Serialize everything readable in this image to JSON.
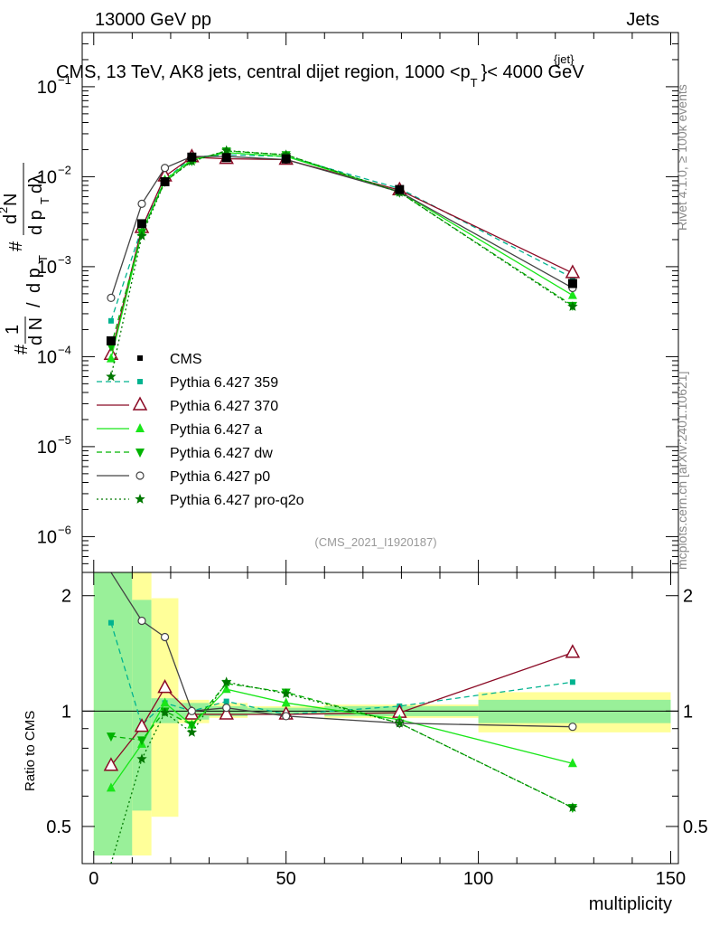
{
  "header": {
    "beam": "13000 GeV pp",
    "category": "Jets",
    "title": "CMS, 13 TeV, AK8 jets, central dijet region, 1000 <p",
    "title_sub": "T",
    "title_sup": "{jet}",
    "title_tail": "}< 4000 GeV",
    "side_rivet": "Rivet 4.1.0, ≥ 100k events",
    "side_site": "mcplots.cern.ch [arXiv:2401.10621]",
    "analysis_id": "(CMS_2021_I1920187)"
  },
  "axes": {
    "ylabel_main_parts": [
      "#",
      "1",
      "d N",
      "/",
      "d p",
      "T",
      "#",
      "d",
      "2",
      "N",
      "d p",
      "T",
      "dλ"
    ],
    "ylabel_ratio": "Ratio to CMS",
    "xlabel": "multiplicity",
    "x_ticks": [
      "0",
      "50",
      "100",
      "150"
    ],
    "y_main_ticks": [
      "10",
      "10",
      "10",
      "10",
      "10",
      "10"
    ],
    "y_main_exps": [
      "−6",
      "−5",
      "−4",
      "−3",
      "−2",
      "−1"
    ],
    "y_ratio_ticks": [
      "0.5",
      "1",
      "2"
    ]
  },
  "colors": {
    "cms": "#000000",
    "p359": "#00b38f",
    "p370": "#8b0a25",
    "pa": "#19e619",
    "pdw": "#00b300",
    "pp0": "#444444",
    "pq2o": "#007700",
    "band_inner": "#99f099",
    "band_outer": "#ffff99"
  },
  "chart_data": {
    "type": "line",
    "title": "CMS, 13 TeV, AK8 jets, central dijet region, 1000 < pT{jet} < 4000 GeV",
    "xlabel": "multiplicity",
    "ylabel": "1/dN/dpT dN2/dpT dlambda",
    "xlim": [
      -3,
      152
    ],
    "ylim_main": [
      4e-07,
      0.4
    ],
    "ylim_ratio": [
      0.4,
      2.3
    ],
    "bins": [
      [
        0,
        10
      ],
      [
        10,
        15
      ],
      [
        15,
        22
      ],
      [
        22,
        30
      ],
      [
        30,
        40
      ],
      [
        40,
        60
      ],
      [
        60,
        100
      ],
      [
        100,
        150
      ]
    ],
    "x": [
      4.5,
      12.5,
      18.5,
      25.5,
      34.5,
      50,
      79.5,
      124.5
    ],
    "reference": {
      "name": "CMS",
      "values": [
        0.00015,
        0.003,
        0.0088,
        0.0165,
        0.0163,
        0.0158,
        0.0072,
        0.00065
      ],
      "band_inner": [
        [
          0.42,
          2.35
        ],
        [
          0.55,
          1.95
        ],
        [
          0.93,
          1.08
        ],
        [
          0.95,
          1.05
        ],
        [
          0.97,
          1.03
        ],
        [
          0.98,
          1.02
        ],
        [
          0.97,
          1.03
        ],
        [
          0.93,
          1.07
        ]
      ],
      "band_outer": [
        [
          0.42,
          2.35
        ],
        [
          0.42,
          2.35
        ],
        [
          0.53,
          1.97
        ],
        [
          0.93,
          1.07
        ],
        [
          0.96,
          1.05
        ],
        [
          0.98,
          1.03
        ],
        [
          0.96,
          1.04
        ],
        [
          0.88,
          1.12
        ]
      ]
    },
    "series": [
      {
        "name": "Pythia 6.427 359",
        "style": "dashed",
        "marker": "square",
        "values": [
          0.00025,
          0.0027,
          0.0092,
          0.0165,
          0.0175,
          0.0168,
          0.0074,
          0.00075
        ],
        "ratio": [
          1.7,
          0.92,
          1.05,
          1.0,
          1.06,
          0.98,
          1.03,
          1.19
        ]
      },
      {
        "name": "Pythia 6.427 370",
        "style": "solid",
        "marker": "open-triangle",
        "values": [
          0.000105,
          0.0027,
          0.0101,
          0.0165,
          0.0158,
          0.0155,
          0.0071,
          0.00085
        ],
        "ratio": [
          0.72,
          0.91,
          1.15,
          0.98,
          0.98,
          0.98,
          0.99,
          1.42
        ]
      },
      {
        "name": "Pythia 6.427 a",
        "style": "solid",
        "marker": "triangle",
        "values": [
          9.5e-05,
          0.0024,
          0.0092,
          0.0155,
          0.0185,
          0.0168,
          0.0068,
          0.00048
        ],
        "ratio": [
          0.63,
          0.82,
          1.05,
          0.92,
          1.14,
          1.05,
          0.95,
          0.73
        ]
      },
      {
        "name": "Pythia 6.427 dw",
        "style": "dashed",
        "marker": "down-triangle",
        "values": [
          0.00013,
          0.0024,
          0.0088,
          0.015,
          0.0193,
          0.0175,
          0.0067,
          0.00037
        ],
        "ratio": [
          0.86,
          0.84,
          1.0,
          0.92,
          1.18,
          1.12,
          0.93,
          0.56
        ]
      },
      {
        "name": "Pythia 6.427 p0",
        "style": "solid",
        "marker": "open-circle",
        "values": [
          0.00045,
          0.005,
          0.0125,
          0.0168,
          0.0168,
          0.0155,
          0.0068,
          0.00058
        ],
        "ratio": [
          3.0,
          1.72,
          1.56,
          1.0,
          1.02,
          0.97,
          0.93,
          0.91
        ]
      },
      {
        "name": "Pythia 6.427 pro-q2o",
        "style": "dotted",
        "marker": "star",
        "values": [
          6e-05,
          0.0022,
          0.0088,
          0.0148,
          0.0195,
          0.0175,
          0.0067,
          0.00036
        ],
        "ratio": [
          0.35,
          0.75,
          0.99,
          0.88,
          1.19,
          1.11,
          0.93,
          0.56
        ]
      }
    ],
    "legend_position": "lower-left"
  }
}
